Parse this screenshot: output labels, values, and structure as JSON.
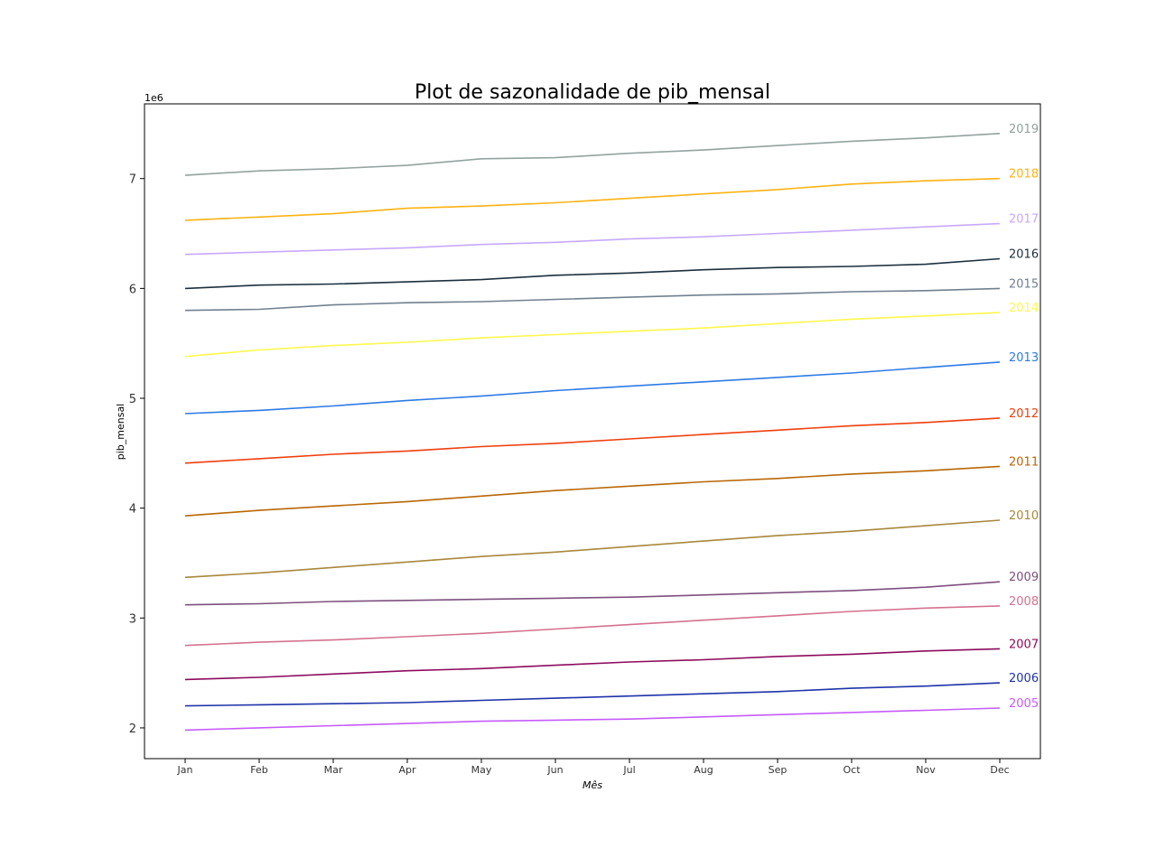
{
  "chart_data": {
    "type": "line",
    "title": "Plot de sazonalidade de pib_mensal",
    "xlabel": "Mês",
    "ylabel": "pib_mensal",
    "y_offset_label": "1e6",
    "categories": [
      "Jan",
      "Feb",
      "Mar",
      "Apr",
      "May",
      "Jun",
      "Jul",
      "Aug",
      "Sep",
      "Oct",
      "Nov",
      "Dec"
    ],
    "ylim": [
      1.72,
      7.68
    ],
    "yticks": [
      2,
      3,
      4,
      5,
      6,
      7
    ],
    "grid": false,
    "legend": "inline labels at right end of each line",
    "series": [
      {
        "name": "2005",
        "color": "#c65bff",
        "values": [
          1.98,
          2.0,
          2.02,
          2.04,
          2.06,
          2.07,
          2.08,
          2.1,
          2.12,
          2.14,
          2.16,
          2.18
        ]
      },
      {
        "name": "2006",
        "color": "#1e33a8",
        "values": [
          2.2,
          2.21,
          2.22,
          2.23,
          2.25,
          2.27,
          2.29,
          2.31,
          2.33,
          2.36,
          2.38,
          2.41
        ]
      },
      {
        "name": "2007",
        "color": "#8c0b5e",
        "values": [
          2.44,
          2.46,
          2.49,
          2.52,
          2.54,
          2.57,
          2.6,
          2.62,
          2.65,
          2.67,
          2.7,
          2.72
        ]
      },
      {
        "name": "2008",
        "color": "#d4728e",
        "values": [
          2.75,
          2.78,
          2.8,
          2.83,
          2.86,
          2.9,
          2.94,
          2.98,
          3.02,
          3.06,
          3.09,
          3.11
        ]
      },
      {
        "name": "2009",
        "color": "#7e4f7e",
        "values": [
          3.12,
          3.13,
          3.15,
          3.16,
          3.17,
          3.18,
          3.19,
          3.21,
          3.23,
          3.25,
          3.28,
          3.33
        ]
      },
      {
        "name": "2010",
        "color": "#a8873a",
        "values": [
          3.37,
          3.41,
          3.46,
          3.51,
          3.56,
          3.6,
          3.65,
          3.7,
          3.75,
          3.79,
          3.84,
          3.89
        ]
      },
      {
        "name": "2011",
        "color": "#b86705",
        "values": [
          3.93,
          3.98,
          4.02,
          4.06,
          4.11,
          4.16,
          4.2,
          4.24,
          4.27,
          4.31,
          4.34,
          4.38
        ]
      },
      {
        "name": "2012",
        "color": "#ef3f0d",
        "values": [
          4.41,
          4.45,
          4.49,
          4.52,
          4.56,
          4.59,
          4.63,
          4.67,
          4.71,
          4.75,
          4.78,
          4.82
        ]
      },
      {
        "name": "2013",
        "color": "#2c7be5",
        "values": [
          4.86,
          4.89,
          4.93,
          4.98,
          5.02,
          5.07,
          5.11,
          5.15,
          5.19,
          5.23,
          5.28,
          5.33
        ]
      },
      {
        "name": "2014",
        "color": "#fff84d",
        "values": [
          5.38,
          5.44,
          5.48,
          5.51,
          5.55,
          5.58,
          5.61,
          5.64,
          5.68,
          5.72,
          5.75,
          5.78
        ]
      },
      {
        "name": "2015",
        "color": "#708090",
        "values": [
          5.8,
          5.81,
          5.85,
          5.87,
          5.88,
          5.9,
          5.92,
          5.94,
          5.95,
          5.97,
          5.98,
          6.0
        ]
      },
      {
        "name": "2016",
        "color": "#1c2f3e",
        "values": [
          6.0,
          6.03,
          6.04,
          6.06,
          6.08,
          6.12,
          6.14,
          6.17,
          6.19,
          6.2,
          6.22,
          6.27
        ]
      },
      {
        "name": "2017",
        "color": "#c8a8ff",
        "values": [
          6.31,
          6.33,
          6.35,
          6.37,
          6.4,
          6.42,
          6.45,
          6.47,
          6.5,
          6.53,
          6.56,
          6.59
        ]
      },
      {
        "name": "2018",
        "color": "#ffb312",
        "values": [
          6.62,
          6.65,
          6.68,
          6.73,
          6.75,
          6.78,
          6.82,
          6.86,
          6.9,
          6.95,
          6.98,
          7.0
        ]
      },
      {
        "name": "2019",
        "color": "#92a39f",
        "values": [
          7.03,
          7.07,
          7.09,
          7.12,
          7.18,
          7.19,
          7.23,
          7.26,
          7.3,
          7.34,
          7.37,
          7.41
        ]
      }
    ]
  }
}
